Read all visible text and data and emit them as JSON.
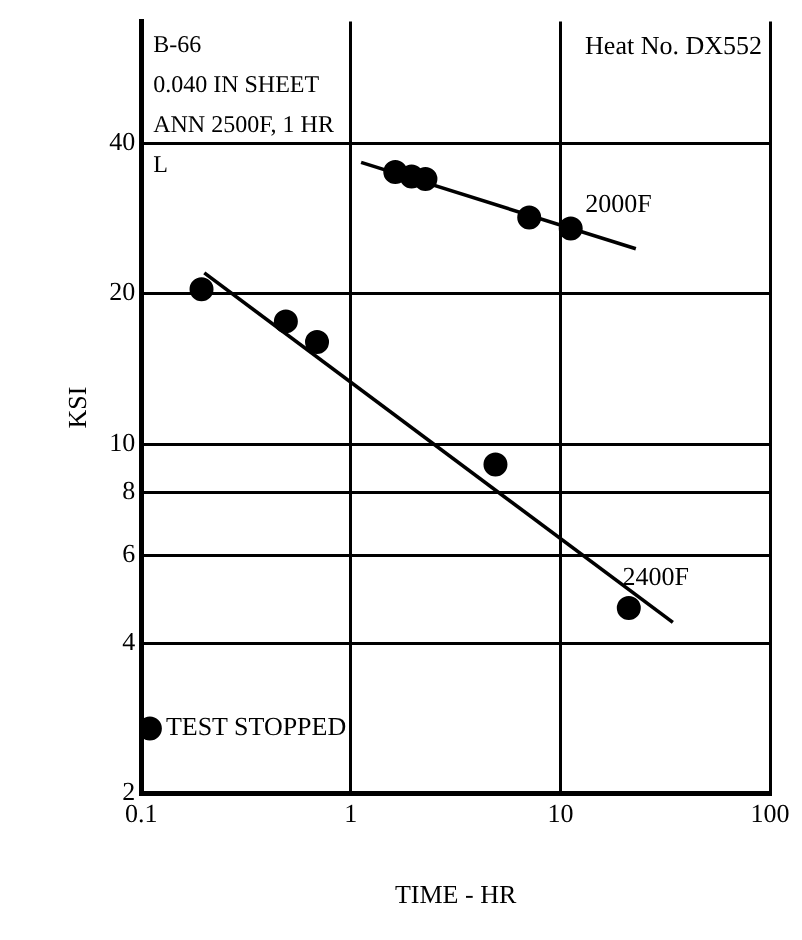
{
  "chart_data": {
    "type": "scatter",
    "xlabel": "TIME - HR",
    "ylabel": "KSI",
    "annotations": [
      "B-66",
      "Heat No. DX552",
      "0.040 IN SHEET",
      "ANN 2500F, 1 HR",
      "L",
      {
        "text": "TEST STOPPED",
        "x": 0.11,
        "y": 2.7
      }
    ],
    "series": [
      {
        "name": "2000F",
        "color": "#000000",
        "x": [
          1.63,
          1.95,
          2.27,
          7.1,
          11.2
        ],
        "values": [
          35,
          34.3,
          33.9,
          28.4,
          27
        ]
      },
      {
        "type": "line",
        "marker": "none",
        "color": "#000000",
        "x": [
          1.12,
          22.9
        ],
        "values": [
          36.6,
          24.6
        ]
      },
      {
        "name": "2400F",
        "color": "#000000",
        "x": [
          0.194,
          0.49,
          0.69,
          4.9,
          21.2
        ],
        "values": [
          20.4,
          17.6,
          16.0,
          9.1,
          4.7
        ]
      },
      {
        "type": "line",
        "marker": "none",
        "color": "#000000",
        "x": [
          0.2,
          34.4
        ],
        "values": [
          22,
          4.4
        ]
      },
      {
        "color": "#000000",
        "x": [
          0.11
        ],
        "values": [
          2.7
        ]
      }
    ],
    "log": "xy",
    "xlim": [
      0.1,
      100
    ],
    "xticks": [
      0.1,
      1,
      10,
      100
    ],
    "ylim": [
      2,
      70
    ],
    "yticks": [
      2,
      4,
      6,
      8,
      10,
      20,
      40
    ],
    "grid": true,
    "marker": "circle",
    "line_style": "solid"
  }
}
